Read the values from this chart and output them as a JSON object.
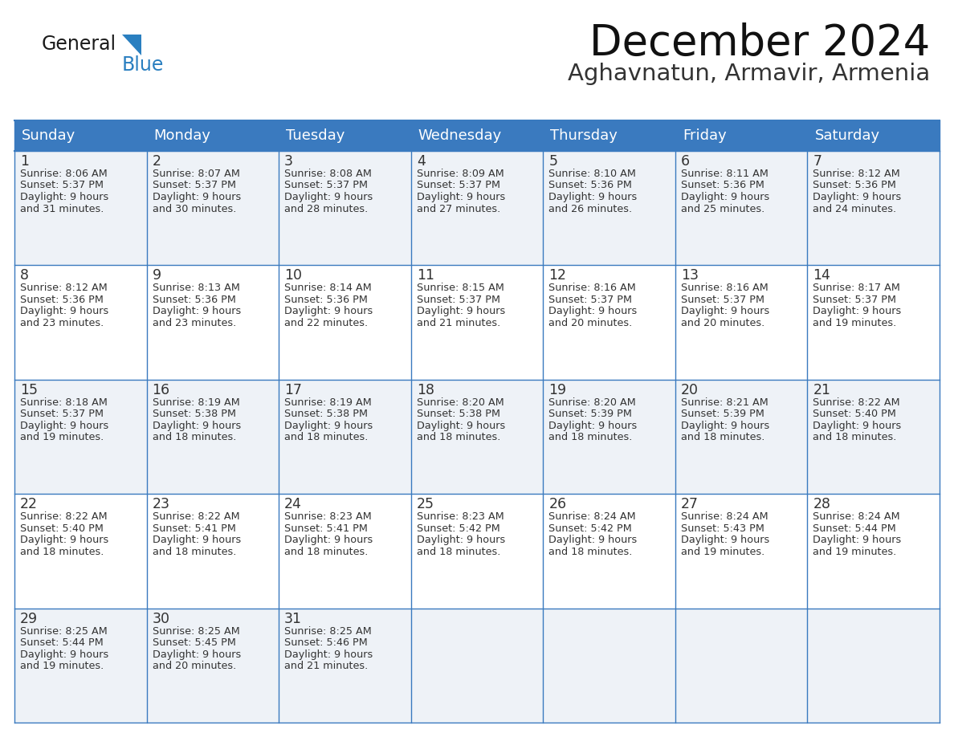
{
  "title": "December 2024",
  "subtitle": "Aghavnatun, Armavir, Armenia",
  "header_bg_color": "#3a7abf",
  "header_text_color": "#ffffff",
  "row_bg_colors": [
    "#eef2f7",
    "#ffffff",
    "#eef2f7",
    "#ffffff",
    "#eef2f7"
  ],
  "border_color": "#3a7abf",
  "text_color": "#333333",
  "days_of_week": [
    "Sunday",
    "Monday",
    "Tuesday",
    "Wednesday",
    "Thursday",
    "Friday",
    "Saturday"
  ],
  "weeks": [
    [
      {
        "day": 1,
        "sunrise": "8:06 AM",
        "sunset": "5:37 PM",
        "daylight_h": "9 hours",
        "daylight_m": "and 31 minutes."
      },
      {
        "day": 2,
        "sunrise": "8:07 AM",
        "sunset": "5:37 PM",
        "daylight_h": "9 hours",
        "daylight_m": "and 30 minutes."
      },
      {
        "day": 3,
        "sunrise": "8:08 AM",
        "sunset": "5:37 PM",
        "daylight_h": "9 hours",
        "daylight_m": "and 28 minutes."
      },
      {
        "day": 4,
        "sunrise": "8:09 AM",
        "sunset": "5:37 PM",
        "daylight_h": "9 hours",
        "daylight_m": "and 27 minutes."
      },
      {
        "day": 5,
        "sunrise": "8:10 AM",
        "sunset": "5:36 PM",
        "daylight_h": "9 hours",
        "daylight_m": "and 26 minutes."
      },
      {
        "day": 6,
        "sunrise": "8:11 AM",
        "sunset": "5:36 PM",
        "daylight_h": "9 hours",
        "daylight_m": "and 25 minutes."
      },
      {
        "day": 7,
        "sunrise": "8:12 AM",
        "sunset": "5:36 PM",
        "daylight_h": "9 hours",
        "daylight_m": "and 24 minutes."
      }
    ],
    [
      {
        "day": 8,
        "sunrise": "8:12 AM",
        "sunset": "5:36 PM",
        "daylight_h": "9 hours",
        "daylight_m": "and 23 minutes."
      },
      {
        "day": 9,
        "sunrise": "8:13 AM",
        "sunset": "5:36 PM",
        "daylight_h": "9 hours",
        "daylight_m": "and 23 minutes."
      },
      {
        "day": 10,
        "sunrise": "8:14 AM",
        "sunset": "5:36 PM",
        "daylight_h": "9 hours",
        "daylight_m": "and 22 minutes."
      },
      {
        "day": 11,
        "sunrise": "8:15 AM",
        "sunset": "5:37 PM",
        "daylight_h": "9 hours",
        "daylight_m": "and 21 minutes."
      },
      {
        "day": 12,
        "sunrise": "8:16 AM",
        "sunset": "5:37 PM",
        "daylight_h": "9 hours",
        "daylight_m": "and 20 minutes."
      },
      {
        "day": 13,
        "sunrise": "8:16 AM",
        "sunset": "5:37 PM",
        "daylight_h": "9 hours",
        "daylight_m": "and 20 minutes."
      },
      {
        "day": 14,
        "sunrise": "8:17 AM",
        "sunset": "5:37 PM",
        "daylight_h": "9 hours",
        "daylight_m": "and 19 minutes."
      }
    ],
    [
      {
        "day": 15,
        "sunrise": "8:18 AM",
        "sunset": "5:37 PM",
        "daylight_h": "9 hours",
        "daylight_m": "and 19 minutes."
      },
      {
        "day": 16,
        "sunrise": "8:19 AM",
        "sunset": "5:38 PM",
        "daylight_h": "9 hours",
        "daylight_m": "and 18 minutes."
      },
      {
        "day": 17,
        "sunrise": "8:19 AM",
        "sunset": "5:38 PM",
        "daylight_h": "9 hours",
        "daylight_m": "and 18 minutes."
      },
      {
        "day": 18,
        "sunrise": "8:20 AM",
        "sunset": "5:38 PM",
        "daylight_h": "9 hours",
        "daylight_m": "and 18 minutes."
      },
      {
        "day": 19,
        "sunrise": "8:20 AM",
        "sunset": "5:39 PM",
        "daylight_h": "9 hours",
        "daylight_m": "and 18 minutes."
      },
      {
        "day": 20,
        "sunrise": "8:21 AM",
        "sunset": "5:39 PM",
        "daylight_h": "9 hours",
        "daylight_m": "and 18 minutes."
      },
      {
        "day": 21,
        "sunrise": "8:22 AM",
        "sunset": "5:40 PM",
        "daylight_h": "9 hours",
        "daylight_m": "and 18 minutes."
      }
    ],
    [
      {
        "day": 22,
        "sunrise": "8:22 AM",
        "sunset": "5:40 PM",
        "daylight_h": "9 hours",
        "daylight_m": "and 18 minutes."
      },
      {
        "day": 23,
        "sunrise": "8:22 AM",
        "sunset": "5:41 PM",
        "daylight_h": "9 hours",
        "daylight_m": "and 18 minutes."
      },
      {
        "day": 24,
        "sunrise": "8:23 AM",
        "sunset": "5:41 PM",
        "daylight_h": "9 hours",
        "daylight_m": "and 18 minutes."
      },
      {
        "day": 25,
        "sunrise": "8:23 AM",
        "sunset": "5:42 PM",
        "daylight_h": "9 hours",
        "daylight_m": "and 18 minutes."
      },
      {
        "day": 26,
        "sunrise": "8:24 AM",
        "sunset": "5:42 PM",
        "daylight_h": "9 hours",
        "daylight_m": "and 18 minutes."
      },
      {
        "day": 27,
        "sunrise": "8:24 AM",
        "sunset": "5:43 PM",
        "daylight_h": "9 hours",
        "daylight_m": "and 19 minutes."
      },
      {
        "day": 28,
        "sunrise": "8:24 AM",
        "sunset": "5:44 PM",
        "daylight_h": "9 hours",
        "daylight_m": "and 19 minutes."
      }
    ],
    [
      {
        "day": 29,
        "sunrise": "8:25 AM",
        "sunset": "5:44 PM",
        "daylight_h": "9 hours",
        "daylight_m": "and 19 minutes."
      },
      {
        "day": 30,
        "sunrise": "8:25 AM",
        "sunset": "5:45 PM",
        "daylight_h": "9 hours",
        "daylight_m": "and 20 minutes."
      },
      {
        "day": 31,
        "sunrise": "8:25 AM",
        "sunset": "5:46 PM",
        "daylight_h": "9 hours",
        "daylight_m": "and 21 minutes."
      },
      null,
      null,
      null,
      null
    ]
  ],
  "logo_triangle_color": "#2a7fc0",
  "logo_blue_color": "#2a7fc0",
  "logo_general_color": "#1a1a1a"
}
